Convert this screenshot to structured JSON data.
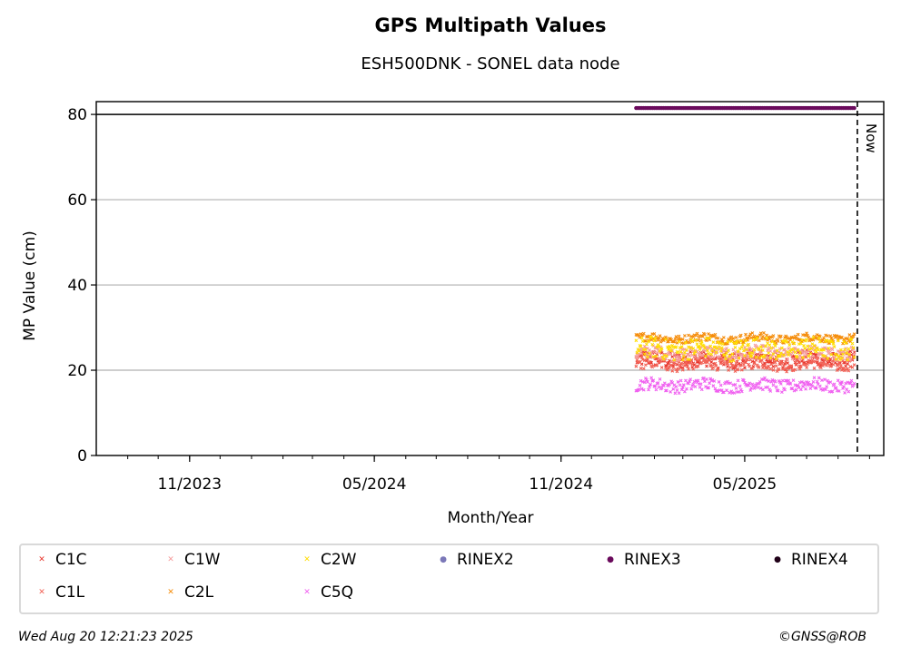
{
  "chart_data": {
    "type": "scatter",
    "title": "GPS Multipath Values",
    "subtitle": "ESH500DNK - SONEL data node",
    "xlabel": "Month/Year",
    "ylabel": "MP Value (cm)",
    "x_range": [
      "2023-08-01",
      "2025-09-15"
    ],
    "ylim": [
      0,
      83
    ],
    "y_ticks": [
      0,
      20,
      40,
      60,
      80
    ],
    "x_ticks": [
      "2023-11-01",
      "2024-05-01",
      "2024-11-01",
      "2025-05-01"
    ],
    "x_tick_labels": [
      "11/2023",
      "05/2024",
      "11/2024",
      "05/2025"
    ],
    "grid": "horizontal",
    "now_line": {
      "date": "2025-08-20",
      "label": "Now"
    },
    "series": [
      {
        "name": "C1C",
        "color": "#e8352c",
        "marker": "x",
        "start": "2025-01-14",
        "end": "2025-08-17",
        "approx_mean": 22.5,
        "approx_spread": 2.0
      },
      {
        "name": "C1L",
        "color": "#f26155",
        "marker": "x",
        "start": "2025-01-14",
        "end": "2025-08-17",
        "approx_mean": 21.5,
        "approx_spread": 1.5
      },
      {
        "name": "C1W",
        "color": "#f59b9b",
        "marker": "x",
        "start": "2025-01-14",
        "end": "2025-08-17",
        "approx_mean": 24.0,
        "approx_spread": 1.5
      },
      {
        "name": "C2L",
        "color": "#f58c0a",
        "marker": "x",
        "start": "2025-01-14",
        "end": "2025-08-17",
        "approx_mean": 27.5,
        "approx_spread": 1.0
      },
      {
        "name": "C2W",
        "color": "#ffdd00",
        "marker": "x",
        "start": "2025-01-14",
        "end": "2025-08-17",
        "approx_mean": 25.0,
        "approx_spread": 2.5
      },
      {
        "name": "C5Q",
        "color": "#f05ff0",
        "marker": "x",
        "start": "2025-01-14",
        "end": "2025-08-17",
        "approx_mean": 16.5,
        "approx_spread": 1.5
      },
      {
        "name": "RINEX2",
        "color": "#7b78b8",
        "marker": "dot"
      },
      {
        "name": "RINEX3",
        "color": "#6a0a5c",
        "marker": "dot",
        "y": 81.5,
        "start": "2025-01-14",
        "end": "2025-08-17"
      },
      {
        "name": "RINEX4",
        "color": "#200018",
        "marker": "dot"
      }
    ]
  },
  "legend": {
    "columns": [
      [
        "C1C",
        "C1L"
      ],
      [
        "C1W",
        "C2L"
      ],
      [
        "C2W",
        "C5Q"
      ],
      [
        "RINEX2"
      ],
      [
        "RINEX3"
      ],
      [
        "RINEX4"
      ]
    ]
  },
  "footer": {
    "timestamp": "Wed Aug 20 12:21:23 2025",
    "copyright": "©GNSS@ROB"
  }
}
